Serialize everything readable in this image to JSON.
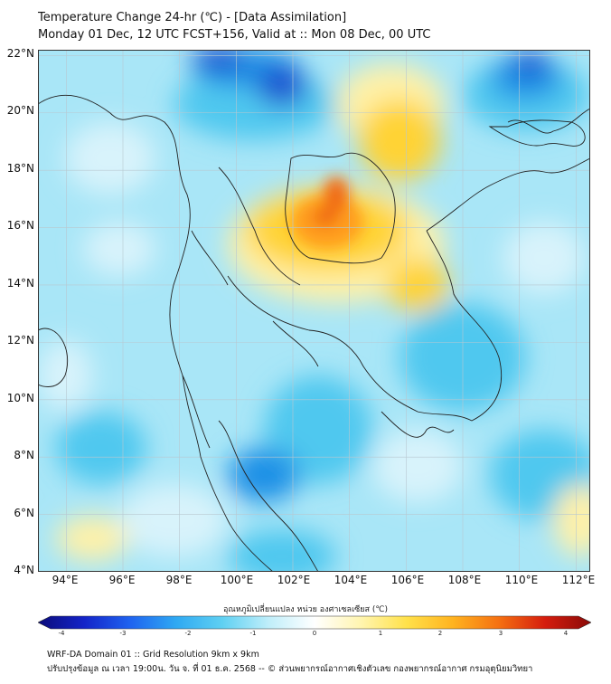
{
  "title": {
    "line1": "Temperature Change 24-hr (℃) - [Data Assimilation]",
    "line2": "Monday 01 Dec, 12 UTC FCST+156, Valid at :: Mon 08 Dec, 00 UTC"
  },
  "map": {
    "lat_labels": [
      "22°N",
      "20°N",
      "18°N",
      "16°N",
      "14°N",
      "12°N",
      "10°N",
      "8°N",
      "6°N",
      "4°N"
    ],
    "lon_labels": [
      "94°E",
      "96°E",
      "98°E",
      "100°E",
      "102°E",
      "104°E",
      "106°E",
      "108°E",
      "110°E",
      "112°E"
    ],
    "lat_range": [
      4,
      22.2
    ],
    "lon_range": [
      93,
      112.5
    ],
    "field_colors": {
      "base": "#a9e6f7",
      "light": "#d8f3fb",
      "mid": "#4fc8ef",
      "deep": "#1e90e6",
      "dark": "#1a4fd0",
      "warm_light": "#fff1a8",
      "warm": "#ffd335",
      "warm_strong": "#ff9d1c",
      "hot": "#f06a14",
      "land_line": "#222222",
      "grid": "#b8c8d0"
    }
  },
  "colorbar": {
    "label": "อุณหภูมิเปลี่ยนแปลง หน่วย องศาเซลเซียส (℃)",
    "ticks": [
      "-4",
      "-3",
      "-2",
      "-1",
      "0",
      "1",
      "2",
      "3",
      "4"
    ],
    "range": [
      -4,
      4
    ],
    "colors": [
      "#0b0b7a",
      "#1424c8",
      "#1f63f0",
      "#2fa9f2",
      "#5fd0f2",
      "#bfeefa",
      "#ffffff",
      "#fff5b0",
      "#ffe14a",
      "#ffb31f",
      "#f57011",
      "#d51d0e",
      "#8a0a08"
    ]
  },
  "footer": {
    "line1": "WRF-DA Domain 01 :: Grid Resolution 9km x 9km",
    "line2": "ปรับปรุงข้อมูล ณ เวลา 19:00น. วัน จ. ที่ 01 ธ.ค. 2568 -- © ส่วนพยากรณ์อากาศเชิงตัวเลข กองพยากรณ์อากาศ กรมอุตุนิยมวิทยา"
  }
}
